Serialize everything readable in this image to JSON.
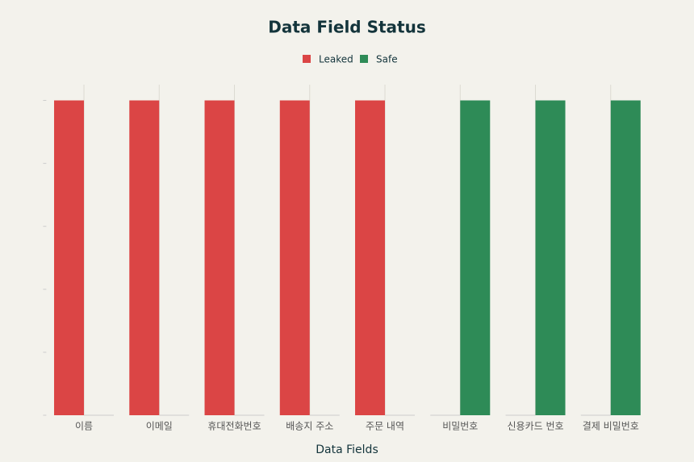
{
  "chart_data": {
    "type": "bar",
    "title": "Data Field Status",
    "x_label": "Data Fields",
    "categories": [
      "이름",
      "이메일",
      "휴대전화번호",
      "배송지 주소",
      "주문 내역",
      "비밀번호",
      "신용카드 번호",
      "결제 비밀번호"
    ],
    "series": [
      {
        "name": "Leaked",
        "color": "#db4545",
        "values": [
          1,
          1,
          1,
          1,
          1,
          0,
          0,
          0
        ]
      },
      {
        "name": "Safe",
        "color": "#2e8b57",
        "values": [
          0,
          0,
          0,
          0,
          0,
          1,
          1,
          1
        ]
      }
    ],
    "ylim": [
      0,
      1.05
    ],
    "yticks": [
      0,
      0.2,
      0.4,
      0.6,
      0.8,
      1
    ]
  }
}
